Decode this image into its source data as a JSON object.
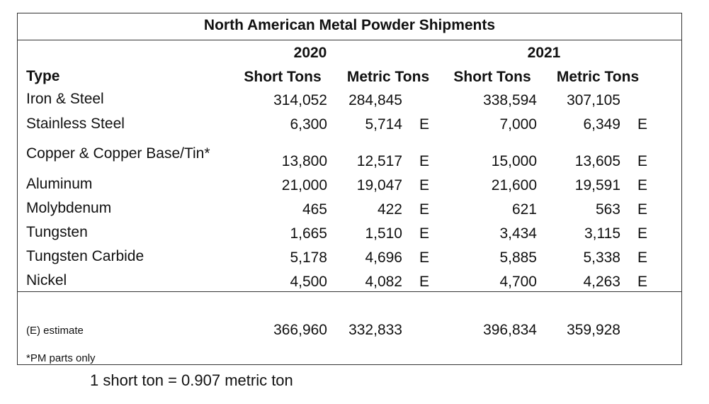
{
  "title": "North American Metal Powder Shipments",
  "years": [
    "2020",
    "2021"
  ],
  "type_header": "Type",
  "col_headers": [
    "Short Tons",
    "Metric Tons",
    "Short Tons",
    "Metric Tons"
  ],
  "rows": [
    {
      "type": "Iron & Steel",
      "st2020": "314,052",
      "mt2020": "284,845",
      "e2020": "",
      "st2021": "338,594",
      "mt2021": "307,105",
      "e2021": ""
    },
    {
      "type": "Stainless Steel",
      "st2020": "6,300",
      "mt2020": "5,714",
      "e2020": "E",
      "st2021": "7,000",
      "mt2021": "6,349",
      "e2021": "E"
    },
    {
      "type": "Copper & Copper Base/Tin*",
      "st2020": "13,800",
      "mt2020": "12,517",
      "e2020": "E",
      "st2021": "15,000",
      "mt2021": "13,605",
      "e2021": "E"
    },
    {
      "type": "Aluminum",
      "st2020": "21,000",
      "mt2020": "19,047",
      "e2020": "E",
      "st2021": "21,600",
      "mt2021": "19,591",
      "e2021": "E"
    },
    {
      "type": "Molybdenum",
      "st2020": "465",
      "mt2020": "422",
      "e2020": "E",
      "st2021": "621",
      "mt2021": "563",
      "e2021": "E"
    },
    {
      "type": "Tungsten",
      "st2020": "1,665",
      "mt2020": "1,510",
      "e2020": "E",
      "st2021": "3,434",
      "mt2021": "3,115",
      "e2021": "E"
    },
    {
      "type": "Tungsten Carbide",
      "st2020": "5,178",
      "mt2020": "4,696",
      "e2020": "E",
      "st2021": "5,885",
      "mt2021": "5,338",
      "e2021": "E"
    },
    {
      "type": "Nickel",
      "st2020": "4,500",
      "mt2020": "4,082",
      "e2020": "E",
      "st2021": "4,700",
      "mt2021": "4,263",
      "e2021": "E"
    }
  ],
  "estimate_note": "(E) estimate",
  "totals": {
    "st2020": "366,960",
    "mt2020": "332,833",
    "st2021": "396,834",
    "mt2021": "359,928"
  },
  "pm_note": "*PM parts only",
  "conversion": "1 short ton = 0.907 metric ton"
}
